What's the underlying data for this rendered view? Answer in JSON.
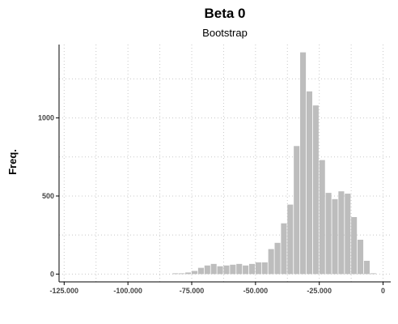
{
  "chart_data": {
    "type": "bar",
    "title": "Beta 0",
    "subtitle": "Bootstrap",
    "xlabel": "",
    "ylabel": "Freq.",
    "xlim": [
      -127000,
      3000
    ],
    "ylim": [
      -50,
      1470
    ],
    "grid": true,
    "bar_color": "#bdbdbd",
    "bin_width": 2500,
    "x_ticks": [
      -125000,
      -100000,
      -75000,
      -50000,
      -25000,
      0
    ],
    "x_tick_labels": [
      "-125.000",
      "-100.000",
      "-75.000",
      "-50.000",
      "-25.000",
      "0"
    ],
    "y_ticks": [
      0,
      500,
      1000
    ],
    "y_tick_labels": [
      "0",
      "500",
      "1000"
    ],
    "bins_start": [
      -82500,
      -80000,
      -77500,
      -75000,
      -72500,
      -70000,
      -67500,
      -65000,
      -62500,
      -60000,
      -57500,
      -55000,
      -52500,
      -50000,
      -47500,
      -45000,
      -42500,
      -40000,
      -37500,
      -35000,
      -32500,
      -30000,
      -27500,
      -25000,
      -22500,
      -20000,
      -17500,
      -15000,
      -12500,
      -10000,
      -7500,
      -5000
    ],
    "values": [
      5,
      5,
      10,
      20,
      40,
      55,
      65,
      50,
      55,
      60,
      65,
      55,
      65,
      75,
      75,
      160,
      200,
      325,
      445,
      820,
      1420,
      1170,
      1080,
      730,
      520,
      480,
      530,
      515,
      365,
      220,
      85,
      5
    ]
  }
}
